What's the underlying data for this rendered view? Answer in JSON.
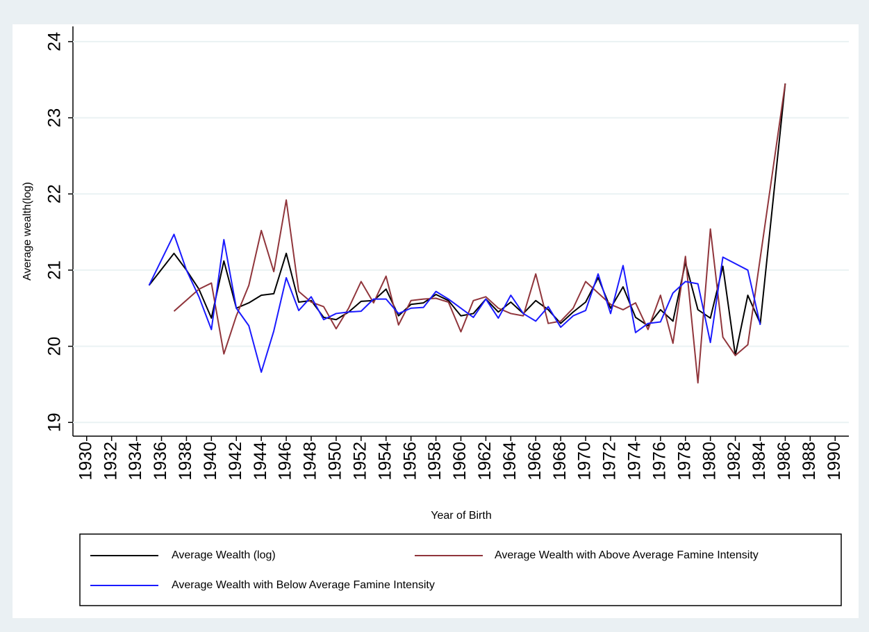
{
  "chart_data": {
    "type": "line",
    "x_label": "Year of Birth",
    "y_label": "Average wealth(log)",
    "xlim": [
      1928.9,
      1991.1
    ],
    "ylim": [
      18.82,
      24.2
    ],
    "xticks": [
      1930,
      1932,
      1934,
      1936,
      1938,
      1940,
      1942,
      1944,
      1946,
      1948,
      1950,
      1952,
      1954,
      1956,
      1958,
      1960,
      1962,
      1964,
      1966,
      1968,
      1970,
      1972,
      1974,
      1976,
      1978,
      1980,
      1982,
      1984,
      1986,
      1988,
      1990
    ],
    "yticks": [
      19,
      20,
      21,
      22,
      23,
      24
    ],
    "grid": true,
    "legend": "bottom",
    "series": [
      {
        "name": "Average Wealth (log)",
        "color": "#000000",
        "x": [
          1935,
          1937,
          1938,
          1939,
          1940,
          1941,
          1942,
          1943,
          1944,
          1945,
          1946,
          1947,
          1948,
          1949,
          1950,
          1951,
          1952,
          1953,
          1954,
          1955,
          1956,
          1957,
          1958,
          1959,
          1960,
          1961,
          1962,
          1963,
          1964,
          1965,
          1966,
          1967,
          1968,
          1969,
          1970,
          1971,
          1972,
          1973,
          1974,
          1975,
          1976,
          1977,
          1978,
          1979,
          1980,
          1981,
          1982,
          1983,
          1984,
          1986
        ],
        "values": [
          20.8,
          21.22,
          21.0,
          20.75,
          20.37,
          21.12,
          20.5,
          20.57,
          20.67,
          20.69,
          21.22,
          20.58,
          20.6,
          20.38,
          20.35,
          20.45,
          20.59,
          20.6,
          20.75,
          20.4,
          20.55,
          20.57,
          20.68,
          20.6,
          20.4,
          20.43,
          20.62,
          20.45,
          20.58,
          20.43,
          20.6,
          20.48,
          20.3,
          20.45,
          20.58,
          20.9,
          20.5,
          20.78,
          20.38,
          20.27,
          20.48,
          20.33,
          21.1,
          20.48,
          20.37,
          21.05,
          19.88,
          20.67,
          20.3,
          23.45
        ]
      },
      {
        "name": "Average Wealth with Above Average Famine Intensity",
        "color": "#90353b",
        "x": [
          1937,
          1939,
          1940,
          1941,
          1942,
          1943,
          1944,
          1945,
          1946,
          1947,
          1948,
          1949,
          1950,
          1951,
          1952,
          1953,
          1954,
          1955,
          1956,
          1957,
          1958,
          1959,
          1960,
          1961,
          1962,
          1963,
          1964,
          1965,
          1966,
          1967,
          1968,
          1969,
          1970,
          1971,
          1972,
          1973,
          1974,
          1975,
          1976,
          1977,
          1978,
          1979,
          1980,
          1981,
          1982,
          1983,
          1986
        ],
        "values": [
          20.46,
          20.75,
          20.83,
          19.9,
          20.4,
          20.8,
          21.52,
          20.98,
          21.92,
          20.72,
          20.58,
          20.52,
          20.23,
          20.5,
          20.85,
          20.57,
          20.92,
          20.28,
          20.6,
          20.62,
          20.63,
          20.58,
          20.19,
          20.6,
          20.65,
          20.5,
          20.43,
          20.4,
          20.95,
          20.3,
          20.33,
          20.5,
          20.85,
          20.7,
          20.55,
          20.48,
          20.57,
          20.22,
          20.67,
          20.04,
          21.18,
          19.52,
          21.54,
          20.12,
          19.88,
          20.02,
          23.45
        ]
      },
      {
        "name": "Average Wealth with Below Average Famine Intensity",
        "color": "#1a1aff",
        "x": [
          1935,
          1937,
          1938,
          1939,
          1940,
          1941,
          1942,
          1943,
          1944,
          1945,
          1946,
          1947,
          1948,
          1949,
          1950,
          1951,
          1952,
          1953,
          1954,
          1955,
          1956,
          1957,
          1958,
          1959,
          1960,
          1961,
          1962,
          1963,
          1964,
          1965,
          1966,
          1967,
          1968,
          1969,
          1970,
          1971,
          1972,
          1973,
          1974,
          1975,
          1976,
          1977,
          1978,
          1979,
          1980,
          1981,
          1983,
          1984
        ],
        "values": [
          20.8,
          21.47,
          21.0,
          20.65,
          20.22,
          21.4,
          20.5,
          20.27,
          19.66,
          20.2,
          20.9,
          20.47,
          20.65,
          20.35,
          20.43,
          20.45,
          20.46,
          20.62,
          20.62,
          20.43,
          20.5,
          20.51,
          20.72,
          20.62,
          20.5,
          20.38,
          20.62,
          20.37,
          20.67,
          20.43,
          20.33,
          20.52,
          20.25,
          20.4,
          20.47,
          20.95,
          20.43,
          21.06,
          20.18,
          20.3,
          20.32,
          20.7,
          20.85,
          20.82,
          20.05,
          21.17,
          21.0,
          20.28
        ]
      }
    ]
  }
}
